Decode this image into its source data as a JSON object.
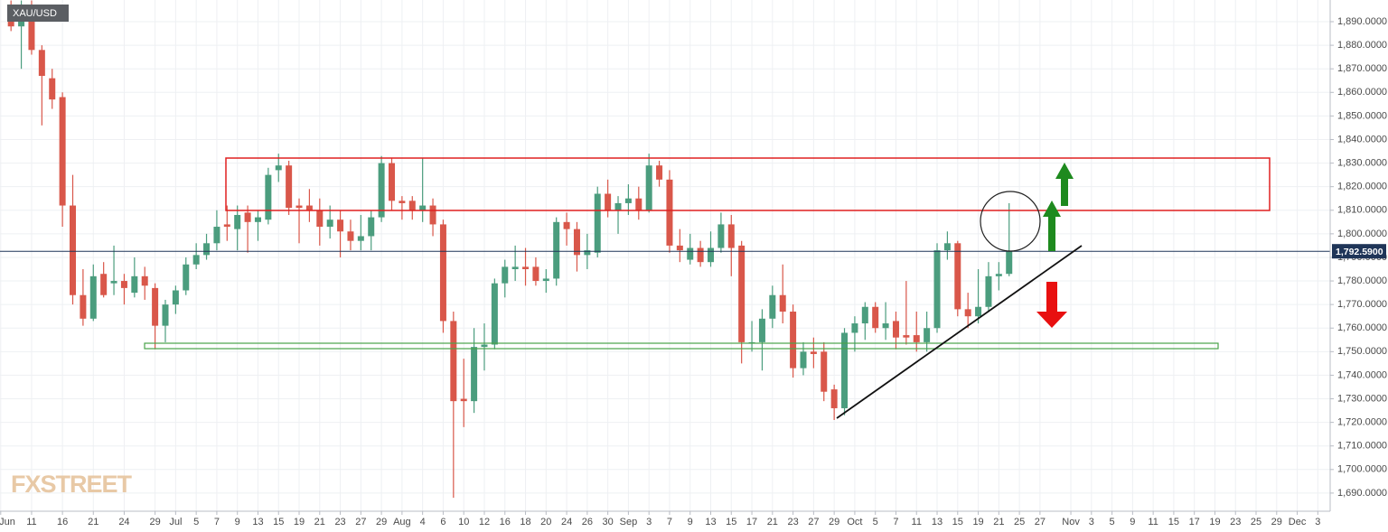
{
  "chart_data": {
    "type": "candlestick",
    "symbol": "XAU/USD",
    "watermark": "FXSTREET",
    "up_color": "#4b9d7e",
    "down_color": "#d9574a",
    "grid": true,
    "x": [
      0,
      1,
      2,
      3,
      4,
      5,
      6,
      7,
      8,
      9,
      10,
      11,
      12,
      13,
      14,
      15,
      16,
      17,
      18,
      19,
      20,
      21,
      22,
      23,
      24,
      25,
      26,
      27,
      28,
      29,
      30,
      31,
      32,
      33,
      34,
      35,
      36,
      37,
      38,
      39,
      40,
      41,
      42,
      43,
      44,
      45,
      46,
      47,
      48,
      49,
      50,
      51,
      52,
      53,
      54,
      55,
      56,
      57,
      58,
      59,
      60,
      61,
      62,
      63,
      64,
      65,
      66,
      67,
      68,
      69,
      70,
      71,
      72,
      73,
      74,
      75,
      76,
      77,
      78,
      79,
      80,
      81,
      82,
      83,
      84,
      85,
      86,
      87,
      88,
      89,
      90,
      91,
      92,
      93,
      94,
      95,
      96,
      97
    ],
    "open": [
      1893,
      1888,
      1897,
      1878,
      1866,
      1858,
      1812,
      1774,
      1764,
      1783,
      1779,
      1780,
      1775,
      1782,
      1777,
      1761,
      1770,
      1776,
      1787,
      1791,
      1796,
      1804,
      1802,
      1809,
      1805,
      1806,
      1827,
      1829,
      1812,
      1812,
      1810,
      1803,
      1806,
      1801,
      1797,
      1799,
      1807,
      1830,
      1814,
      1814,
      1810,
      1812,
      1804,
      1763,
      1730,
      1729,
      1752,
      1753,
      1779,
      1785,
      1786,
      1786,
      1780,
      1781,
      1805,
      1802,
      1791,
      1792,
      1817,
      1810,
      1813,
      1815,
      1810,
      1829,
      1823,
      1795,
      1789,
      1794,
      1788,
      1794,
      1804,
      1795,
      1754,
      1754,
      1764,
      1774,
      1767,
      1743,
      1750,
      1750,
      1734,
      1726,
      1758,
      1762,
      1769,
      1760,
      1763,
      1757,
      1757,
      1754,
      1760,
      1793,
      1796,
      1768,
      1765,
      1769,
      1782,
      1783
    ],
    "high": [
      1899,
      1899,
      1899,
      1880,
      1870,
      1860,
      1825,
      1785,
      1787,
      1788,
      1795,
      1783,
      1790,
      1786,
      1779,
      1772,
      1778,
      1790,
      1796,
      1800,
      1810,
      1812,
      1812,
      1812,
      1810,
      1828,
      1834,
      1831,
      1815,
      1819,
      1815,
      1812,
      1810,
      1806,
      1808,
      1810,
      1833,
      1832,
      1816,
      1816,
      1832,
      1815,
      1806,
      1767,
      1747,
      1760,
      1762,
      1781,
      1789,
      1795,
      1794,
      1790,
      1785,
      1807,
      1809,
      1805,
      1800,
      1820,
      1823,
      1816,
      1821,
      1820,
      1834,
      1831,
      1827,
      1802,
      1800,
      1797,
      1801,
      1809,
      1808,
      1797,
      1763,
      1768,
      1778,
      1787,
      1770,
      1754,
      1756,
      1754,
      1736,
      1760,
      1765,
      1771,
      1771,
      1771,
      1767,
      1780,
      1767,
      1767,
      1796,
      1801,
      1797,
      1775,
      1785,
      1788,
      1788,
      1813
    ],
    "low": [
      1886,
      1870,
      1876,
      1846,
      1853,
      1803,
      1770,
      1761,
      1763,
      1773,
      1774,
      1770,
      1773,
      1772,
      1751,
      1754,
      1766,
      1774,
      1785,
      1789,
      1793,
      1797,
      1793,
      1792,
      1797,
      1804,
      1822,
      1808,
      1796,
      1805,
      1795,
      1798,
      1790,
      1793,
      1793,
      1793,
      1805,
      1810,
      1806,
      1806,
      1805,
      1799,
      1758,
      1688,
      1718,
      1724,
      1742,
      1751,
      1773,
      1780,
      1778,
      1778,
      1775,
      1778,
      1795,
      1784,
      1785,
      1790,
      1807,
      1800,
      1808,
      1806,
      1809,
      1820,
      1792,
      1788,
      1787,
      1786,
      1786,
      1792,
      1782,
      1745,
      1750,
      1742,
      1760,
      1762,
      1739,
      1740,
      1743,
      1729,
      1721,
      1723,
      1750,
      1755,
      1758,
      1755,
      1751,
      1753,
      1750,
      1750,
      1758,
      1789,
      1765,
      1760,
      1762,
      1767,
      1776,
      1782
    ],
    "close": [
      1888,
      1896,
      1878,
      1867,
      1857,
      1812,
      1774,
      1764,
      1782,
      1774,
      1780,
      1777,
      1782,
      1778,
      1761,
      1770,
      1776,
      1787,
      1791,
      1796,
      1803,
      1803,
      1808,
      1805,
      1807,
      1825,
      1829,
      1811,
      1811,
      1810,
      1803,
      1806,
      1801,
      1797,
      1799,
      1807,
      1830,
      1814,
      1813,
      1810,
      1812,
      1804,
      1763,
      1729,
      1729,
      1752,
      1753,
      1779,
      1786,
      1786,
      1785,
      1780,
      1781,
      1805,
      1802,
      1791,
      1793,
      1817,
      1810,
      1813,
      1815,
      1810,
      1829,
      1823,
      1795,
      1793,
      1794,
      1788,
      1794,
      1804,
      1794,
      1754,
      1754,
      1764,
      1774,
      1767,
      1743,
      1750,
      1749,
      1733,
      1726,
      1758,
      1762,
      1769,
      1760,
      1762,
      1756,
      1756,
      1754,
      1760,
      1793,
      1796,
      1768,
      1765,
      1769,
      1782,
      1783,
      1792.59
    ],
    "price_line": {
      "value": 1792.59,
      "label": "1,792.5900",
      "color": "#1f3558"
    },
    "xlim": [
      -1.07,
      128.2
    ],
    "ylim": [
      1682.3,
      1899.2
    ],
    "xticks": [
      {
        "value": -1,
        "label": "Jun"
      },
      {
        "value": 2,
        "label": "11"
      },
      {
        "value": 5,
        "label": "16"
      },
      {
        "value": 8,
        "label": "21"
      },
      {
        "value": 11,
        "label": "24"
      },
      {
        "value": 14,
        "label": "29"
      },
      {
        "value": 16,
        "label": "Jul"
      },
      {
        "value": 18,
        "label": "5"
      },
      {
        "value": 20,
        "label": "7"
      },
      {
        "value": 22,
        "label": "9"
      },
      {
        "value": 24,
        "label": "13"
      },
      {
        "value": 26,
        "label": "15"
      },
      {
        "value": 28,
        "label": "19"
      },
      {
        "value": 30,
        "label": "21"
      },
      {
        "value": 32,
        "label": "23"
      },
      {
        "value": 34,
        "label": "27"
      },
      {
        "value": 36,
        "label": "29"
      },
      {
        "value": 38,
        "label": "Aug"
      },
      {
        "value": 40,
        "label": "4"
      },
      {
        "value": 42,
        "label": "6"
      },
      {
        "value": 44,
        "label": "10"
      },
      {
        "value": 46,
        "label": "12"
      },
      {
        "value": 48,
        "label": "16"
      },
      {
        "value": 50,
        "label": "18"
      },
      {
        "value": 52,
        "label": "20"
      },
      {
        "value": 54,
        "label": "24"
      },
      {
        "value": 56,
        "label": "26"
      },
      {
        "value": 58,
        "label": "30"
      },
      {
        "value": 60,
        "label": "Sep"
      },
      {
        "value": 62,
        "label": "3"
      },
      {
        "value": 64,
        "label": "7"
      },
      {
        "value": 66,
        "label": "9"
      },
      {
        "value": 68,
        "label": "13"
      },
      {
        "value": 70,
        "label": "15"
      },
      {
        "value": 72,
        "label": "17"
      },
      {
        "value": 74,
        "label": "21"
      },
      {
        "value": 76,
        "label": "23"
      },
      {
        "value": 78,
        "label": "27"
      },
      {
        "value": 80,
        "label": "29"
      },
      {
        "value": 82,
        "label": "Oct"
      },
      {
        "value": 84,
        "label": "5"
      },
      {
        "value": 86,
        "label": "7"
      },
      {
        "value": 88,
        "label": "11"
      },
      {
        "value": 90,
        "label": "13"
      },
      {
        "value": 92,
        "label": "15"
      },
      {
        "value": 94,
        "label": "19"
      },
      {
        "value": 96,
        "label": "21"
      },
      {
        "value": 98,
        "label": "25"
      },
      {
        "value": 100,
        "label": "27"
      },
      {
        "value": 103,
        "label": "Nov"
      },
      {
        "value": 105,
        "label": "3"
      },
      {
        "value": 107,
        "label": "5"
      },
      {
        "value": 109,
        "label": "9"
      },
      {
        "value": 111,
        "label": "11"
      },
      {
        "value": 113,
        "label": "15"
      },
      {
        "value": 115,
        "label": "17"
      },
      {
        "value": 117,
        "label": "19"
      },
      {
        "value": 119,
        "label": "23"
      },
      {
        "value": 121,
        "label": "25"
      },
      {
        "value": 123,
        "label": "29"
      },
      {
        "value": 125,
        "label": "Dec"
      },
      {
        "value": 127,
        "label": "3"
      }
    ],
    "yticks": [
      {
        "value": 1690,
        "label": "1,690.0000"
      },
      {
        "value": 1700,
        "label": "1,700.0000"
      },
      {
        "value": 1710,
        "label": "1,710.0000"
      },
      {
        "value": 1720,
        "label": "1,720.0000"
      },
      {
        "value": 1730,
        "label": "1,730.0000"
      },
      {
        "value": 1740,
        "label": "1,740.0000"
      },
      {
        "value": 1750,
        "label": "1,750.0000"
      },
      {
        "value": 1760,
        "label": "1,760.0000"
      },
      {
        "value": 1770,
        "label": "1,770.0000"
      },
      {
        "value": 1780,
        "label": "1,780.0000"
      },
      {
        "value": 1790,
        "label": "1,790.0000"
      },
      {
        "value": 1800,
        "label": "1,800.0000"
      },
      {
        "value": 1810,
        "label": "1,810.0000"
      },
      {
        "value": 1820,
        "label": "1,820.0000"
      },
      {
        "value": 1830,
        "label": "1,830.0000"
      },
      {
        "value": 1840,
        "label": "1,840.0000"
      },
      {
        "value": 1850,
        "label": "1,850.0000"
      },
      {
        "value": 1860,
        "label": "1,860.0000"
      },
      {
        "value": 1870,
        "label": "1,870.0000"
      },
      {
        "value": 1880,
        "label": "1,880.0000"
      },
      {
        "value": 1890,
        "label": "1,890.0000"
      }
    ]
  }
}
